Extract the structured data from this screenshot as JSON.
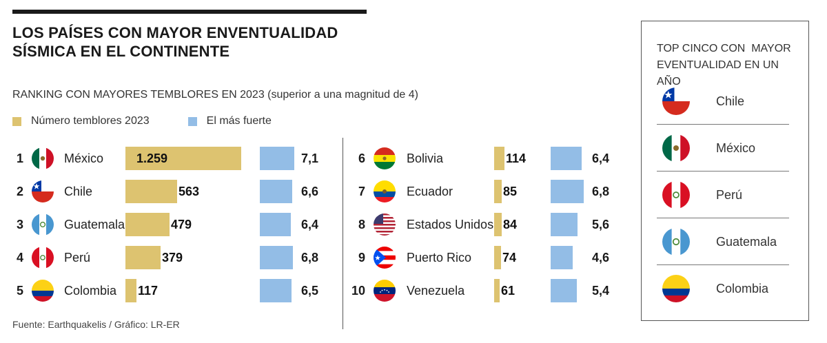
{
  "title_line1": "LOS PAÍSES CON MAYOR ENVENTUALIDAD",
  "title_line2": "SÍSMICA EN EL CONTINENTE",
  "subtitle": "RANKING CON MAYORES TEMBLORES EN 2023 (superior a una magnitud de 4)",
  "legend": {
    "tremors": "Número temblores 2023",
    "strongest": "El más fuerte"
  },
  "colors": {
    "tremors": "#ddc370",
    "strongest": "#93bde6"
  },
  "source": "Fuente: Earthquakelis / Gráfico: LR-ER",
  "chart_data": {
    "type": "bar",
    "title": "RANKING CON MAYORES TEMBLORES EN 2023 (superior a una magnitud de 4)",
    "series": [
      {
        "name": "Número temblores 2023",
        "values": [
          1259,
          563,
          479,
          379,
          117,
          114,
          85,
          84,
          74,
          61
        ]
      },
      {
        "name": "El más fuerte",
        "values": [
          7.1,
          6.6,
          6.4,
          6.8,
          6.5,
          6.4,
          6.8,
          5.6,
          4.6,
          5.4
        ]
      }
    ],
    "categories": [
      "México",
      "Chile",
      "Guatemala",
      "Perú",
      "Colombia",
      "Bolivia",
      "Ecuador",
      "Estados Unidos",
      "Puerto Rico",
      "Venezuela"
    ],
    "rows": [
      {
        "rank": "1",
        "country": "México",
        "flag": "mexico-flag-icon",
        "tremors": 1259,
        "tremors_label": "1.259",
        "strongest": 7.1,
        "strongest_label": "7,1"
      },
      {
        "rank": "2",
        "country": "Chile",
        "flag": "chile-flag-icon",
        "tremors": 563,
        "tremors_label": "563",
        "strongest": 6.6,
        "strongest_label": "6,6"
      },
      {
        "rank": "3",
        "country": "Guatemala",
        "flag": "guatemala-flag-icon",
        "tremors": 479,
        "tremors_label": "479",
        "strongest": 6.4,
        "strongest_label": "6,4"
      },
      {
        "rank": "4",
        "country": "Perú",
        "flag": "peru-flag-icon",
        "tremors": 379,
        "tremors_label": "379",
        "strongest": 6.8,
        "strongest_label": "6,8"
      },
      {
        "rank": "5",
        "country": "Colombia",
        "flag": "colombia-flag-icon",
        "tremors": 117,
        "tremors_label": "117",
        "strongest": 6.5,
        "strongest_label": "6,5"
      },
      {
        "rank": "6",
        "country": "Bolivia",
        "flag": "bolivia-flag-icon",
        "tremors": 114,
        "tremors_label": "114",
        "strongest": 6.4,
        "strongest_label": "6,4"
      },
      {
        "rank": "7",
        "country": "Ecuador",
        "flag": "ecuador-flag-icon",
        "tremors": 85,
        "tremors_label": "85",
        "strongest": 6.8,
        "strongest_label": "6,8"
      },
      {
        "rank": "8",
        "country": "Estados Unidos",
        "flag": "usa-flag-icon",
        "tremors": 84,
        "tremors_label": "84",
        "strongest": 5.6,
        "strongest_label": "5,6"
      },
      {
        "rank": "9",
        "country": "Puerto Rico",
        "flag": "puerto-rico-flag-icon",
        "tremors": 74,
        "tremors_label": "74",
        "strongest": 4.6,
        "strongest_label": "4,6"
      },
      {
        "rank": "10",
        "country": "Venezuela",
        "flag": "venezuela-flag-icon",
        "tremors": 61,
        "tremors_label": "61",
        "strongest": 5.4,
        "strongest_label": "5,4"
      }
    ]
  },
  "top5": {
    "title_line1": "TOP CINCO CON  MAYOR",
    "title_line2": "EVENTUALIDAD EN UN AÑO",
    "items": [
      {
        "country": "Chile",
        "flag": "chile-flag-icon"
      },
      {
        "country": "México",
        "flag": "mexico-flag-icon"
      },
      {
        "country": "Perú",
        "flag": "peru-flag-icon"
      },
      {
        "country": "Guatemala",
        "flag": "guatemala-flag-icon"
      },
      {
        "country": "Colombia",
        "flag": "colombia-flag-icon"
      }
    ]
  }
}
